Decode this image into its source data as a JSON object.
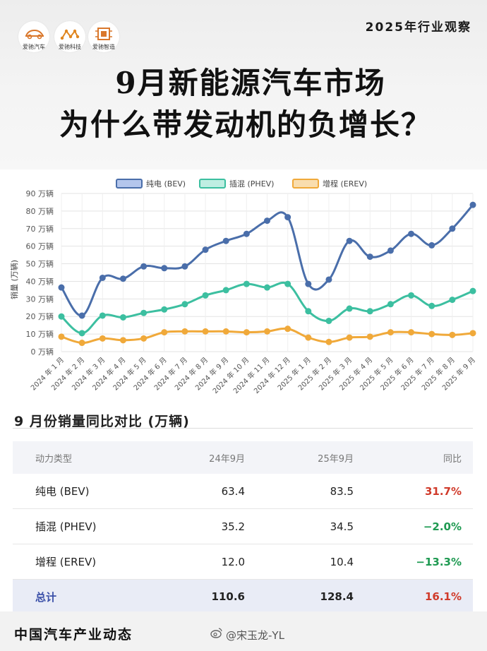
{
  "header": {
    "logos": [
      {
        "name": "爱驰汽车",
        "icon": "car-icon",
        "color": "#d9772b"
      },
      {
        "name": "爱驰科技",
        "icon": "molecule-icon",
        "color": "#e0861f"
      },
      {
        "name": "爱驰智造",
        "icon": "chip-icon",
        "color": "#d9772b"
      }
    ],
    "year_tag": "2025年行业观察",
    "title_line1": "9月新能源汽车市场",
    "title_line2": "为什么带发动机的负增长？"
  },
  "chart_data": {
    "type": "line",
    "ylabel": "销量 (万辆)",
    "ylim": [
      0,
      90
    ],
    "yticks": [
      "0 万辆",
      "10 万辆",
      "20 万辆",
      "30 万辆",
      "40 万辆",
      "50 万辆",
      "60 万辆",
      "70 万辆",
      "80 万辆",
      "90 万辆"
    ],
    "ytick_values": [
      0,
      10,
      20,
      30,
      40,
      50,
      60,
      70,
      80,
      90
    ],
    "grid": true,
    "legend": "top",
    "categories": [
      "2024 年 1 月",
      "2024 年 2 月",
      "2024 年 3 月",
      "2024 年 4 月",
      "2024 年 5 月",
      "2024 年 6 月",
      "2024 年 7 月",
      "2024 年 8 月",
      "2024 年 9 月",
      "2024 年 10 月",
      "2024 年 11 月",
      "2024 年 12 月",
      "2025 年 1 月",
      "2025 年 2 月",
      "2025 年 3 月",
      "2025 年 4 月",
      "2025 年 5 月",
      "2025 年 6 月",
      "2025 年 7 月",
      "2025 年 8 月",
      "2025 年 9 月"
    ],
    "series": [
      {
        "name": "纯电 (BEV)",
        "color": "#4a6eaa",
        "fill": "#b4c6ec",
        "values": [
          36.5,
          20.5,
          42.0,
          41.5,
          48.5,
          47.5,
          48.5,
          58.0,
          63.0,
          67.0,
          74.5,
          76.5,
          38.5,
          41.0,
          63.0,
          54.0,
          57.5,
          67.0,
          60.5,
          70.0,
          83.5
        ]
      },
      {
        "name": "插混 (PHEV)",
        "color": "#3cbfa0",
        "fill": "#bfeee2",
        "values": [
          20.0,
          10.5,
          20.5,
          19.5,
          22.0,
          24.0,
          27.0,
          32.0,
          35.0,
          38.5,
          36.5,
          38.5,
          23.0,
          17.5,
          24.5,
          23.0,
          27.0,
          32.0,
          26.0,
          29.5,
          34.5
        ]
      },
      {
        "name": "增程 (EREV)",
        "color": "#f0a93a",
        "fill": "#f9ddae",
        "values": [
          8.5,
          5.0,
          7.5,
          6.5,
          7.5,
          11.0,
          11.5,
          11.5,
          11.5,
          11.0,
          11.5,
          13.0,
          8.0,
          5.5,
          8.0,
          8.5,
          11.0,
          11.0,
          10.0,
          9.5,
          10.5
        ]
      }
    ]
  },
  "table": {
    "title": "9 月份销量同比对比 (万辆)",
    "headers": [
      "动力类型",
      "24年9月",
      "25年9月",
      "同比"
    ],
    "rows": [
      {
        "type": "纯电 (BEV)",
        "y2024": "63.4",
        "y2025": "83.5",
        "yoy": "31.7%"
      },
      {
        "type": "插混 (PHEV)",
        "y2024": "35.2",
        "y2025": "34.5",
        "yoy": "−2.0%"
      },
      {
        "type": "增程 (EREV)",
        "y2024": "12.0",
        "y2025": "10.4",
        "yoy": "−13.3%"
      }
    ],
    "total": {
      "type": "总计",
      "y2024": "110.6",
      "y2025": "128.4",
      "yoy": "16.1%"
    },
    "pos_color": "#d03a2a",
    "neg_color": "#1f9a52"
  },
  "footer": {
    "text": "中国汽车产业动态",
    "weibo_icon": "weibo-icon",
    "watermark": "@宋玉龙-YL"
  }
}
